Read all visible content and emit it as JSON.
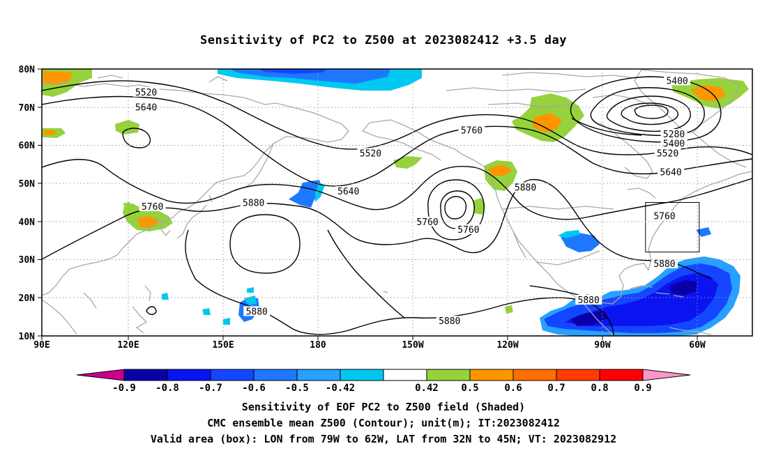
{
  "title": "Sensitivity of PC2 to Z500 at 2023082412 +3.5 day",
  "lat_labels": [
    "80N",
    "70N",
    "60N",
    "50N",
    "40N",
    "30N",
    "20N",
    "10N"
  ],
  "lon_labels": [
    "90E",
    "120E",
    "150E",
    "180",
    "150W",
    "120W",
    "90W",
    "60W"
  ],
  "contour_labels": [
    {
      "text": "5520",
      "lon": 123,
      "lat": 74
    },
    {
      "text": "5640",
      "lon": 123,
      "lat": 70
    },
    {
      "text": "5400",
      "lon": -69,
      "lat": 77
    },
    {
      "text": "5760",
      "lon": -134,
      "lat": 64
    },
    {
      "text": "5280",
      "lon": -70,
      "lat": 63
    },
    {
      "text": "5400",
      "lon": -70,
      "lat": 60.5
    },
    {
      "text": "5520",
      "lon": -72,
      "lat": 58
    },
    {
      "text": "5640",
      "lon": -71,
      "lat": 53
    },
    {
      "text": "5520",
      "lon": -166,
      "lat": 58
    },
    {
      "text": "5640",
      "lon": -173,
      "lat": 48
    },
    {
      "text": "5880",
      "lon": -117,
      "lat": 49
    },
    {
      "text": "5760",
      "lon": 125,
      "lat": 44
    },
    {
      "text": "5880",
      "lon": 157,
      "lat": 45
    },
    {
      "text": "5760",
      "lon": -148,
      "lat": 40
    },
    {
      "text": "5760",
      "lon": -135,
      "lat": 38
    },
    {
      "text": "5760",
      "lon": -73,
      "lat": 41.5
    },
    {
      "text": "5880",
      "lon": -73,
      "lat": 29
    },
    {
      "text": "5880",
      "lon": -97,
      "lat": 19.5
    },
    {
      "text": "5880",
      "lon": 158,
      "lat": 16.5
    },
    {
      "text": "5880",
      "lon": -141,
      "lat": 14
    }
  ],
  "colorbar": {
    "levels": [
      "-0.9",
      "-0.8",
      "-0.7",
      "-0.6",
      "-0.5",
      "-0.42",
      "0.42",
      "0.5",
      "0.6",
      "0.7",
      "0.8",
      "0.9"
    ],
    "colors": [
      "#c8008c",
      "#0a00a8",
      "#0a14f0",
      "#1446ff",
      "#1e78ff",
      "#28a0ff",
      "#00c8f0",
      "#ffffff",
      "#96d23c",
      "#ff9600",
      "#ff6e00",
      "#ff3c00",
      "#ff0000",
      "#ff96c8"
    ]
  },
  "valid_box": {
    "lon_min": -79,
    "lon_max": -62,
    "lat_min": 32,
    "lat_max": 45
  },
  "captions": [
    "Sensitivity of EOF PC2 to Z500 field (Shaded)",
    "CMC ensemble mean Z500 (Contour); unit(m); IT:2023082412",
    "Valid area (box): LON from 79W to 62W, LAT from 32N to 45N; VT: 2023082912"
  ]
}
